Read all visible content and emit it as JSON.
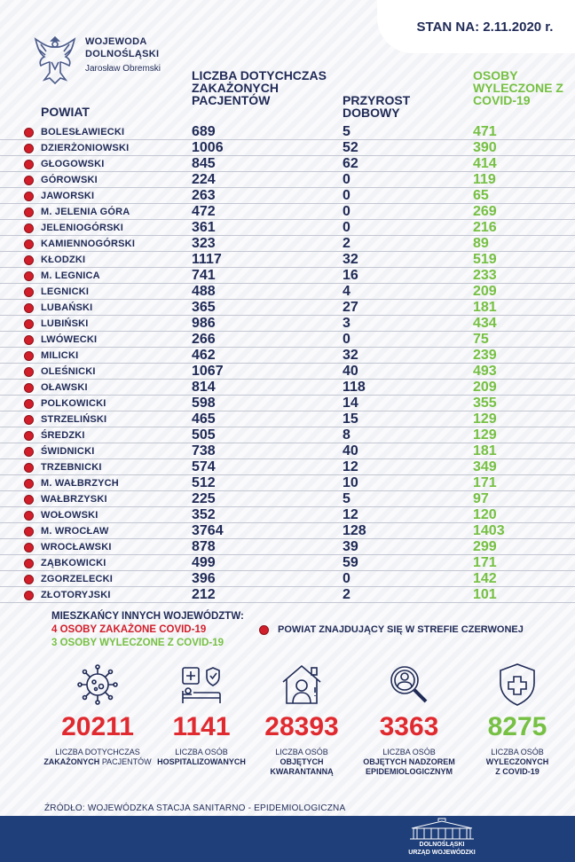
{
  "header": {
    "org_line1": "WOJEWODA",
    "org_line2": "DOLNOŚLĄSKI",
    "org_line3": "Jarosław Obremski",
    "status_date": "STAN NA: 2.11.2020 r."
  },
  "columns": {
    "powiat": "POWIAT",
    "cases": "LICZBA DOTYCHCZAS ZAKAŻONYCH PACJENTÓW",
    "increase": "PRZYROST DOBOWY",
    "recovered": "OSOBY WYLECZONE Z COVID-19"
  },
  "rows": [
    {
      "name": "BOLESŁAWIECKI",
      "cases": "689",
      "increase": "5",
      "recovered": "471"
    },
    {
      "name": "DZIERŻONIOWSKI",
      "cases": "1006",
      "increase": "52",
      "recovered": "390"
    },
    {
      "name": "GŁOGOWSKI",
      "cases": "845",
      "increase": "62",
      "recovered": "414"
    },
    {
      "name": "GÓROWSKI",
      "cases": "224",
      "increase": "0",
      "recovered": "119"
    },
    {
      "name": "JAWORSKI",
      "cases": "263",
      "increase": "0",
      "recovered": "65"
    },
    {
      "name": "M. JELENIA GÓRA",
      "cases": "472",
      "increase": "0",
      "recovered": "269"
    },
    {
      "name": "JELENIOGÓRSKI",
      "cases": "361",
      "increase": "0",
      "recovered": "216"
    },
    {
      "name": "KAMIENNOGÓRSKI",
      "cases": "323",
      "increase": "2",
      "recovered": "89"
    },
    {
      "name": "KŁODZKI",
      "cases": "1117",
      "increase": "32",
      "recovered": "519"
    },
    {
      "name": "M. LEGNICA",
      "cases": "741",
      "increase": "16",
      "recovered": "233"
    },
    {
      "name": "LEGNICKI",
      "cases": "488",
      "increase": "4",
      "recovered": "209"
    },
    {
      "name": "LUBAŃSKI",
      "cases": "365",
      "increase": "27",
      "recovered": "181"
    },
    {
      "name": "LUBIŃSKI",
      "cases": "986",
      "increase": "3",
      "recovered": "434"
    },
    {
      "name": "LWÓWECKI",
      "cases": "266",
      "increase": "0",
      "recovered": "75"
    },
    {
      "name": "MILICKI",
      "cases": "462",
      "increase": "32",
      "recovered": "239"
    },
    {
      "name": "OLEŚNICKI",
      "cases": "1067",
      "increase": "40",
      "recovered": "493"
    },
    {
      "name": "OŁAWSKI",
      "cases": "814",
      "increase": "118",
      "recovered": "209"
    },
    {
      "name": "POLKOWICKI",
      "cases": "598",
      "increase": "14",
      "recovered": "355"
    },
    {
      "name": "STRZELIŃSKI",
      "cases": "465",
      "increase": "15",
      "recovered": "129"
    },
    {
      "name": "ŚREDZKI",
      "cases": "505",
      "increase": "8",
      "recovered": "129"
    },
    {
      "name": "ŚWIDNICKI",
      "cases": "738",
      "increase": "40",
      "recovered": "181"
    },
    {
      "name": "TRZEBNICKI",
      "cases": "574",
      "increase": "12",
      "recovered": "349"
    },
    {
      "name": "M. WAŁBRZYCH",
      "cases": "512",
      "increase": "10",
      "recovered": "171"
    },
    {
      "name": "WAŁBRZYSKI",
      "cases": "225",
      "increase": "5",
      "recovered": "97"
    },
    {
      "name": "WOŁOWSKI",
      "cases": "352",
      "increase": "12",
      "recovered": "120"
    },
    {
      "name": "M. WROCŁAW",
      "cases": "3764",
      "increase": "128",
      "recovered": "1403"
    },
    {
      "name": "WROCŁAWSKI",
      "cases": "878",
      "increase": "39",
      "recovered": "299"
    },
    {
      "name": "ZĄBKOWICKI",
      "cases": "499",
      "increase": "59",
      "recovered": "171"
    },
    {
      "name": "ZGORZELECKI",
      "cases": "396",
      "increase": "0",
      "recovered": "142"
    },
    {
      "name": "ZŁOTORYJSKI",
      "cases": "212",
      "increase": "2",
      "recovered": "101"
    }
  ],
  "other_regions": {
    "title": "MIESZKAŃCY INNYCH WOJEWÓDZTW:",
    "infected": "4 OSOBY ZAKAŻONE COVID-19",
    "recovered": "3 OSOBY WYLECZONE Z COVID-19"
  },
  "legend": {
    "red_zone": "POWIAT ZNAJDUJĄCY SIĘ W STREFIE CZERWONEJ"
  },
  "stats": [
    {
      "value": "20211",
      "label_top": "LICZBA DOTYCHCZAS",
      "label_bold": "ZAKAŻONYCH",
      "label_rest": "PACJENTÓW",
      "icon": "virus-icon",
      "color": "#e02a2f"
    },
    {
      "value": "1141",
      "label_top": "LICZBA OSÓB",
      "label_bold": "HOSPITALIZOWANYCH",
      "label_rest": "",
      "icon": "hospital-bed-icon",
      "color": "#e02a2f"
    },
    {
      "value": "28393",
      "label_top": "LICZBA OSÓB",
      "label_bold": "OBJĘTYCH",
      "label_rest": "KWARANTANNĄ",
      "icon": "quarantine-house-icon",
      "color": "#e02a2f"
    },
    {
      "value": "3363",
      "label_top": "LICZBA OSÓB",
      "label_bold": "OBJĘTYCH NADZOREM",
      "label_rest": "EPIDEMIOLOGICZNYM",
      "icon": "magnifier-person-icon",
      "color": "#e02a2f"
    },
    {
      "value": "8275",
      "label_top": "LICZBA OSÓB",
      "label_bold": "WYLECZONYCH",
      "label_rest": "Z COVID-19",
      "icon": "shield-cross-icon",
      "color": "#76c043"
    }
  ],
  "source": "ŹRÓDŁO: WOJEWÓDZKA STACJA SANITARNO - EPIDEMIOLOGICZNA",
  "footer": {
    "logo_line1": "DOLNOŚLĄSKI",
    "logo_line2": "URZĄD WOJEWÓDZKI"
  }
}
